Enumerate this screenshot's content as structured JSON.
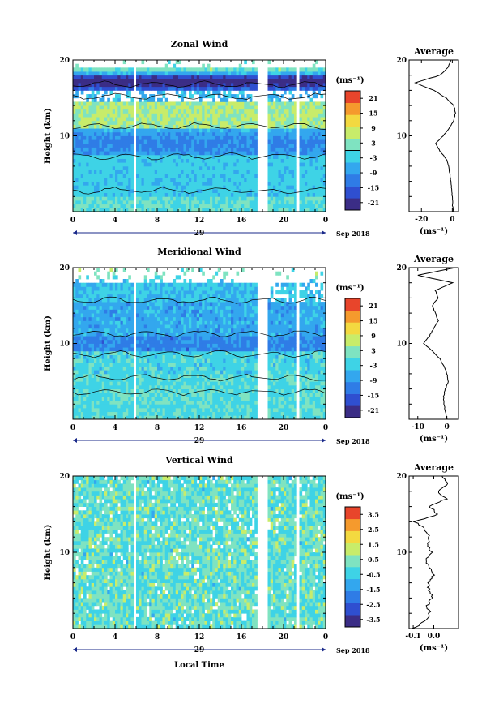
{
  "chart_data": [
    {
      "type": "heatmap",
      "title": "Zonal Wind",
      "ylabel": "Height (km)",
      "y_ticks": [
        "20",
        "10"
      ],
      "ylim": [
        0,
        20
      ],
      "x_ticks": [
        "0",
        "4",
        "8",
        "12",
        "16",
        "20",
        "0"
      ],
      "xlim": [
        0,
        24
      ],
      "date_day": "29",
      "date_month": "Sep 2018",
      "units": "(ms⁻¹)",
      "colorbar_ticks": [
        "21",
        "15",
        "9",
        "3",
        "-3",
        "-9",
        "-15",
        "-21"
      ],
      "colorbar_range": [
        -24,
        24
      ],
      "gaps": [
        [
          5.8,
          6.0
        ],
        [
          17.4,
          18.6
        ],
        [
          21.3,
          21.6
        ]
      ],
      "average": {
        "title": "Average",
        "x_ticks": [
          "-20",
          "0"
        ],
        "xlim": [
          -28,
          4
        ],
        "xlabel": "(ms⁻¹)",
        "profile": [
          [
            0.5,
            0
          ],
          [
            0.2,
            1
          ],
          [
            0,
            2
          ],
          [
            -0.5,
            3
          ],
          [
            -1,
            4
          ],
          [
            -1.5,
            5
          ],
          [
            -2.5,
            6
          ],
          [
            -4,
            7
          ],
          [
            -8,
            8
          ],
          [
            -11,
            9
          ],
          [
            -6,
            10
          ],
          [
            -2,
            11
          ],
          [
            1,
            12
          ],
          [
            2,
            13
          ],
          [
            1,
            14
          ],
          [
            -4,
            15
          ],
          [
            -12,
            16
          ],
          [
            -24,
            17
          ],
          [
            -8,
            18
          ],
          [
            -3,
            19
          ],
          [
            -1,
            20
          ]
        ]
      }
    },
    {
      "type": "heatmap",
      "title": "Meridional Wind",
      "ylabel": "Height (km)",
      "y_ticks": [
        "20",
        "10"
      ],
      "ylim": [
        0,
        20
      ],
      "x_ticks": [
        "0",
        "4",
        "8",
        "12",
        "16",
        "20",
        "0"
      ],
      "xlim": [
        0,
        24
      ],
      "date_day": "29",
      "date_month": "Sep 2018",
      "units": "(ms⁻¹)",
      "colorbar_ticks": [
        "21",
        "15",
        "9",
        "3",
        "-3",
        "-9",
        "-15",
        "-21"
      ],
      "colorbar_range": [
        -24,
        24
      ],
      "gaps": [
        [
          5.8,
          6.0
        ],
        [
          8.4,
          8.6
        ],
        [
          17.4,
          18.6
        ],
        [
          21.3,
          21.6
        ]
      ],
      "average": {
        "title": "Average",
        "x_ticks": [
          "-10",
          "0"
        ],
        "xlim": [
          -13,
          4
        ],
        "xlabel": "(ms⁻¹)",
        "profile": [
          [
            0,
            0
          ],
          [
            -0.5,
            1
          ],
          [
            -1,
            2
          ],
          [
            -1.2,
            3
          ],
          [
            -0.5,
            4
          ],
          [
            0.5,
            5
          ],
          [
            0,
            6
          ],
          [
            -1,
            7
          ],
          [
            -2.5,
            8
          ],
          [
            -5,
            9
          ],
          [
            -8,
            10
          ],
          [
            -6,
            11
          ],
          [
            -4.5,
            12
          ],
          [
            -3,
            13
          ],
          [
            -4,
            14
          ],
          [
            -5,
            15
          ],
          [
            -3,
            16
          ],
          [
            -4,
            17
          ],
          [
            2,
            18
          ],
          [
            -10,
            19
          ],
          [
            3,
            20
          ]
        ]
      }
    },
    {
      "type": "heatmap",
      "title": "Vertical Wind",
      "ylabel": "Height (km)",
      "y_ticks": [
        "20",
        "10"
      ],
      "ylim": [
        0,
        20
      ],
      "x_ticks": [
        "0",
        "4",
        "8",
        "12",
        "16",
        "20",
        "0"
      ],
      "xlim": [
        0,
        24
      ],
      "date_day": "29",
      "date_month": "Sep 2018",
      "xlabel": "Local Time",
      "units": "(ms⁻¹)",
      "colorbar_ticks": [
        "3.5",
        "2.5",
        "1.5",
        "0.5",
        "-0.5",
        "-1.5",
        "-2.5",
        "-3.5"
      ],
      "colorbar_range": [
        -4,
        4
      ],
      "gaps": [
        [
          5.8,
          6.0
        ],
        [
          17.4,
          18.6
        ],
        [
          21.3,
          21.6
        ]
      ],
      "average": {
        "title": "Average",
        "x_ticks": [
          "-0.1",
          "0.0"
        ],
        "xlim": [
          -0.12,
          0.12
        ],
        "xlabel": "(ms⁻¹)",
        "profile": [
          [
            -0.1,
            0
          ],
          [
            -0.04,
            1
          ],
          [
            -0.02,
            2
          ],
          [
            -0.03,
            3
          ],
          [
            -0.01,
            4
          ],
          [
            -0.02,
            5
          ],
          [
            -0.03,
            6
          ],
          [
            0,
            7
          ],
          [
            -0.02,
            8
          ],
          [
            -0.04,
            9
          ],
          [
            -0.01,
            10
          ],
          [
            -0.03,
            11
          ],
          [
            -0.02,
            12
          ],
          [
            -0.04,
            13
          ],
          [
            -0.09,
            14
          ],
          [
            0.02,
            15
          ],
          [
            -0.02,
            16
          ],
          [
            0.06,
            17
          ],
          [
            0.02,
            18
          ],
          [
            0.07,
            19
          ],
          [
            0.04,
            20
          ]
        ]
      }
    }
  ]
}
